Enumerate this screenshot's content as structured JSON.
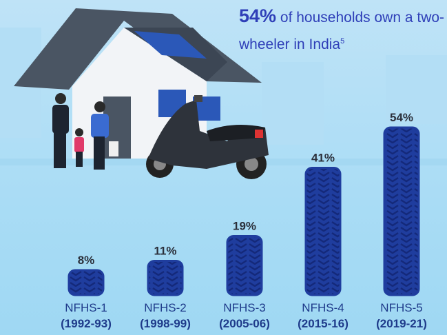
{
  "chart_data": {
    "type": "bar",
    "title_highlight": "54%",
    "title": "of households own a two-wheeler in India",
    "title_footnote": "5",
    "categories": [
      "NFHS-1",
      "NFHS-2",
      "NFHS-3",
      "NFHS-4",
      "NFHS-5"
    ],
    "category_periods": [
      "(1992-93)",
      "(1998-99)",
      "(2005-06)",
      "(2015-16)",
      "(2019-21)"
    ],
    "values": [
      8,
      11,
      19,
      41,
      54
    ],
    "value_labels": [
      "8%",
      "11%",
      "19%",
      "41%",
      "54%"
    ],
    "color": "#1f3d9e"
  }
}
